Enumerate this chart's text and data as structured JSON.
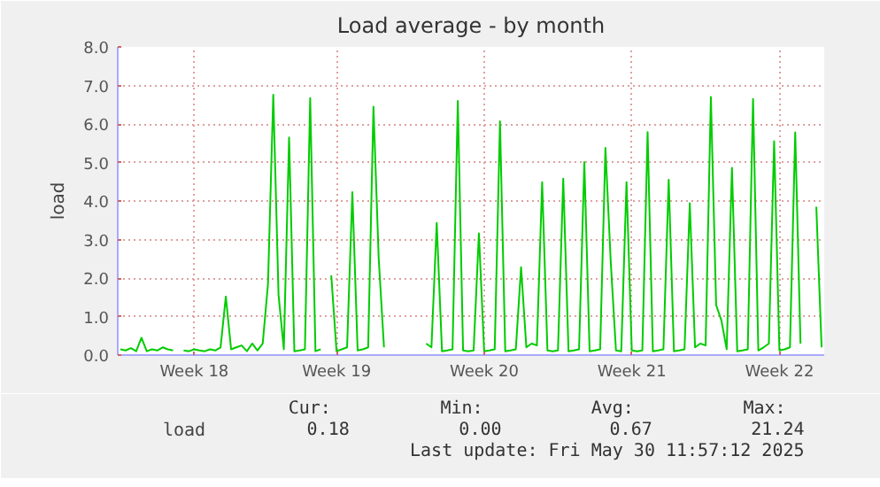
{
  "chart_data": {
    "type": "line",
    "title": "Load average - by month",
    "ylabel": "load",
    "categories": [
      null,
      null,
      null,
      null,
      null,
      null,
      null,
      null,
      null,
      null,
      null,
      null,
      null,
      null,
      "Week 18",
      null,
      null,
      null,
      null,
      null,
      null,
      null,
      null,
      null,
      null,
      null,
      null,
      null,
      null,
      null,
      null,
      null,
      null,
      null,
      null,
      null,
      null,
      null,
      null,
      null,
      null,
      "Week 19",
      null,
      null,
      null,
      null,
      null,
      null,
      null,
      null,
      null,
      null,
      null,
      null,
      null,
      null,
      null,
      null,
      null,
      null,
      null,
      null,
      null,
      null,
      null,
      null,
      null,
      null,
      null,
      "Week 20",
      null,
      null,
      null,
      null,
      null,
      null,
      null,
      null,
      null,
      null,
      null,
      null,
      null,
      null,
      null,
      null,
      null,
      null,
      null,
      null,
      null,
      null,
      null,
      null,
      null,
      null,
      null,
      "Week 21",
      null,
      null,
      null,
      null,
      null,
      null,
      null,
      null,
      null,
      null,
      null,
      null,
      null,
      null,
      null,
      null,
      null,
      null,
      null,
      null,
      null,
      null,
      null,
      null,
      null,
      null,
      null,
      "Week 22",
      null,
      null,
      null,
      null,
      null,
      null,
      null,
      null
    ],
    "series": [
      {
        "name": "load",
        "color": "#00cc00",
        "values": [
          0.15,
          0.12,
          0.18,
          0.1,
          0.45,
          0.1,
          0.15,
          0.12,
          0.2,
          0.15,
          0.12,
          null,
          0.12,
          0.1,
          0.15,
          0.12,
          0.1,
          0.15,
          0.12,
          0.2,
          1.52,
          0.15,
          0.2,
          0.25,
          0.1,
          0.3,
          0.12,
          0.3,
          1.85,
          6.76,
          1.56,
          0.15,
          5.65,
          0.1,
          0.12,
          0.15,
          6.67,
          0.1,
          0.15,
          null,
          2.07,
          0.1,
          0.15,
          0.2,
          4.23,
          0.12,
          0.15,
          0.2,
          6.45,
          2.5,
          0.2,
          null,
          null,
          null,
          null,
          null,
          null,
          null,
          0.3,
          0.2,
          3.43,
          0.1,
          0.12,
          0.15,
          6.6,
          0.12,
          0.1,
          0.12,
          3.16,
          0.1,
          0.12,
          0.15,
          6.07,
          0.1,
          0.12,
          0.15,
          2.28,
          0.2,
          0.3,
          0.25,
          4.49,
          0.12,
          0.1,
          0.12,
          4.58,
          0.1,
          0.12,
          0.15,
          5.01,
          0.1,
          0.12,
          0.15,
          5.38,
          2.44,
          0.12,
          0.1,
          4.49,
          0.12,
          0.1,
          0.12,
          5.79,
          0.1,
          0.12,
          0.15,
          4.55,
          0.1,
          0.12,
          0.15,
          3.94,
          0.2,
          0.3,
          0.25,
          6.7,
          1.3,
          0.9,
          0.15,
          4.86,
          0.1,
          0.12,
          0.15,
          6.65,
          0.12,
          0.2,
          0.3,
          5.55,
          0.12,
          0.15,
          0.2,
          5.78,
          0.3,
          null,
          null,
          3.85,
          0.2
        ]
      }
    ],
    "ylim": [
      0,
      8
    ],
    "yticks": [
      {
        "value": 0,
        "label": "0.0"
      },
      {
        "value": 1,
        "label": "1.0"
      },
      {
        "value": 2,
        "label": "2.0"
      },
      {
        "value": 3,
        "label": "3.0"
      },
      {
        "value": 4,
        "label": "4.0"
      },
      {
        "value": 5,
        "label": "5.0"
      },
      {
        "value": 6,
        "label": "6.0"
      },
      {
        "value": 7,
        "label": "7.0"
      },
      {
        "value": 8,
        "label": "8.0"
      }
    ],
    "grid": true,
    "legend": "bottom left",
    "line_style": "solid",
    "marker": "none",
    "annotations": [
      "Cur:",
      "0.18",
      "Min:",
      "0.00",
      "Avg:",
      "0.67",
      "Max:",
      "21.24",
      "Last update: Fri May 30 11:57:12 2025"
    ]
  }
}
